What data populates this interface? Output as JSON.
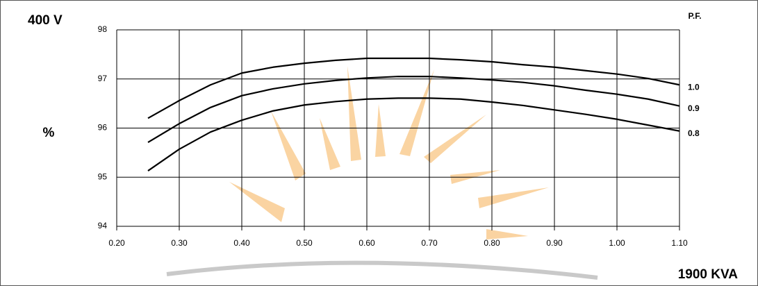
{
  "chart_data": {
    "type": "line",
    "title": "400 V",
    "y_label": "%",
    "x_label": "1900 KVA",
    "legend_title": "P.F.",
    "x": [
      0.25,
      0.3,
      0.35,
      0.4,
      0.45,
      0.5,
      0.55,
      0.6,
      0.65,
      0.7,
      0.75,
      0.8,
      0.85,
      0.9,
      0.95,
      1.0,
      1.05,
      1.1
    ],
    "series": [
      {
        "name": "1.0",
        "color": "#000000",
        "values": [
          96.2,
          96.56,
          96.88,
          97.12,
          97.24,
          97.32,
          97.38,
          97.42,
          97.42,
          97.42,
          97.39,
          97.35,
          97.29,
          97.24,
          97.17,
          97.1,
          97.01,
          96.88
        ]
      },
      {
        "name": "0.9",
        "color": "#000000",
        "values": [
          95.71,
          96.09,
          96.42,
          96.66,
          96.8,
          96.9,
          96.97,
          97.02,
          97.05,
          97.05,
          97.02,
          96.98,
          96.93,
          96.86,
          96.77,
          96.69,
          96.59,
          96.45
        ]
      },
      {
        "name": "0.8",
        "color": "#000000",
        "values": [
          95.13,
          95.57,
          95.92,
          96.16,
          96.35,
          96.47,
          96.54,
          96.59,
          96.61,
          96.61,
          96.59,
          96.53,
          96.46,
          96.37,
          96.28,
          96.18,
          96.06,
          95.94
        ]
      }
    ],
    "xlim": [
      0.2,
      1.1
    ],
    "xticks": [
      {
        "value": 0.2,
        "label": "0.20"
      },
      {
        "value": 0.3,
        "label": "0.30"
      },
      {
        "value": 0.4,
        "label": "0.40"
      },
      {
        "value": 0.5,
        "label": "0.50"
      },
      {
        "value": 0.6,
        "label": "0.60"
      },
      {
        "value": 0.7,
        "label": "0.70"
      },
      {
        "value": 0.8,
        "label": "0.80"
      },
      {
        "value": 0.9,
        "label": "0.90"
      },
      {
        "value": 1.0,
        "label": "1.00"
      },
      {
        "value": 1.1,
        "label": "1.10"
      }
    ],
    "ylim": [
      94,
      98
    ],
    "yticks": [
      94,
      95,
      96,
      97,
      98
    ],
    "grid": true
  }
}
